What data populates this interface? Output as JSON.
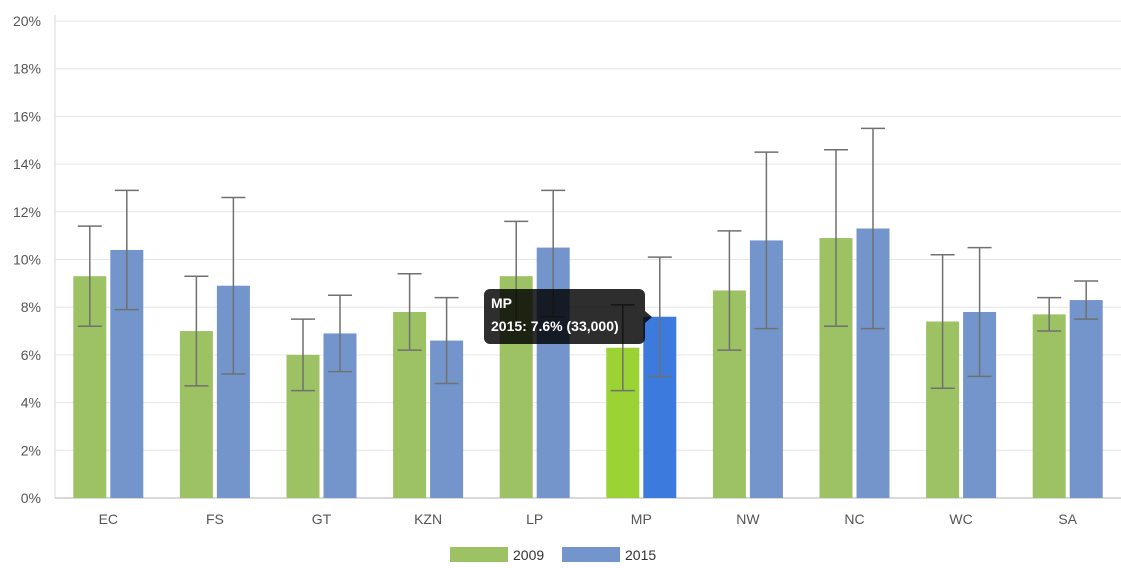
{
  "chart_data": {
    "type": "bar",
    "categories": [
      "EC",
      "FS",
      "GT",
      "KZN",
      "LP",
      "MP",
      "NW",
      "NC",
      "WC",
      "SA"
    ],
    "series": [
      {
        "name": "2009",
        "color": "#9dc264",
        "highlight_color": "#9bd234",
        "values": [
          9.3,
          7.0,
          6.0,
          7.8,
          9.3,
          6.3,
          8.7,
          10.9,
          7.4,
          7.7
        ],
        "error_low": [
          7.2,
          4.7,
          4.5,
          6.2,
          7.1,
          4.5,
          6.2,
          7.2,
          4.6,
          7.0
        ],
        "error_high": [
          11.4,
          9.3,
          7.5,
          9.4,
          11.6,
          8.1,
          11.2,
          14.6,
          10.2,
          8.4
        ]
      },
      {
        "name": "2015",
        "color": "#7395cc",
        "highlight_color": "#3d7ade",
        "values": [
          10.4,
          8.9,
          6.9,
          6.6,
          10.5,
          7.6,
          10.8,
          11.3,
          7.8,
          8.3
        ],
        "error_low": [
          7.9,
          5.2,
          5.3,
          4.8,
          7.6,
          5.1,
          7.1,
          7.1,
          5.1,
          7.5
        ],
        "error_high": [
          12.9,
          12.6,
          8.5,
          8.4,
          12.9,
          10.1,
          14.5,
          15.5,
          10.5,
          9.1
        ]
      }
    ],
    "y_ticks": [
      "0%",
      "2%",
      "4%",
      "6%",
      "8%",
      "10%",
      "12%",
      "14%",
      "16%",
      "18%",
      "20%"
    ],
    "ylim": [
      0,
      20
    ],
    "grid": true,
    "legend_position": "bottom-center",
    "highlighted_category": "MP",
    "tooltip": {
      "title": "MP",
      "body": "2015: 7.6% (33,000)"
    }
  }
}
